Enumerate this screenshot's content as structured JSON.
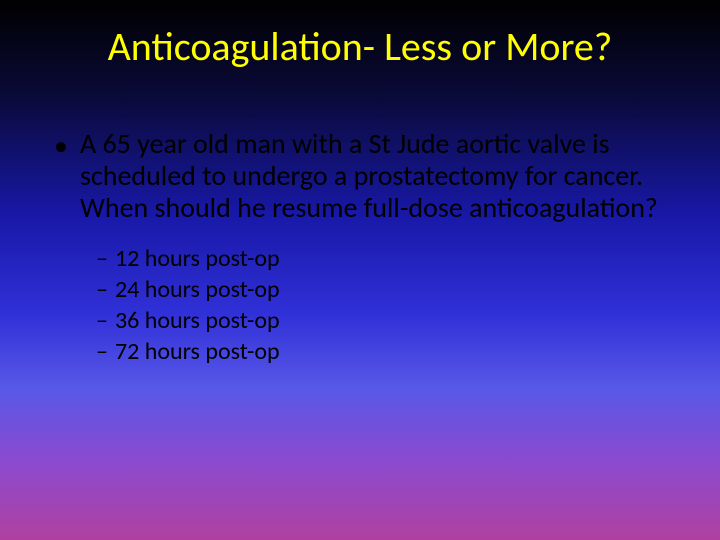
{
  "slide": {
    "title": "Anticoagulation- Less or More?",
    "title_color": "#ffff00",
    "title_fontsize": 40,
    "background_gradient": [
      "#000000",
      "#0a0a3a",
      "#1818a8",
      "#3030d8",
      "#5858e8",
      "#8a4ad0",
      "#b040a0"
    ],
    "body_color": "#000000",
    "bullet_char": "•",
    "dash_char": "–",
    "question": "A 65 year old man with a St Jude aortic valve is scheduled to undergo a prostatectomy for cancer. When should he resume full-dose anticoagulation?",
    "question_fontsize": 28,
    "options": [
      "12 hours post-op",
      "24 hours post-op",
      "36 hours post-op",
      "72 hours post-op"
    ],
    "option_fontsize": 24
  }
}
